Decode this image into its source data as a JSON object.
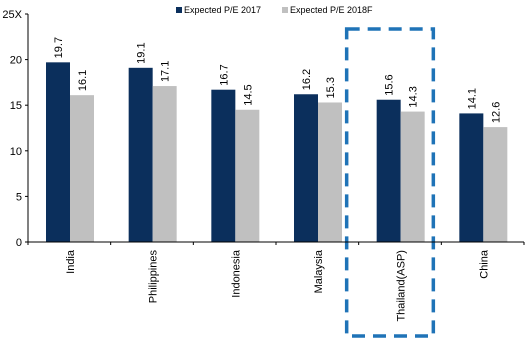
{
  "chart_data": {
    "type": "bar",
    "categories": [
      "India",
      "Philippines",
      "Indonesia",
      "Malaysia",
      "Thailand(ASP)",
      "China"
    ],
    "series": [
      {
        "name": "Expected P/E 2017",
        "color": "#0b2f5c",
        "values": [
          19.7,
          19.1,
          16.7,
          16.2,
          15.6,
          14.1
        ]
      },
      {
        "name": "Expected P/E 2018F",
        "color": "#c0c0c0",
        "values": [
          16.1,
          17.1,
          14.5,
          15.3,
          14.3,
          12.6
        ]
      }
    ],
    "y_ticks": [
      "0",
      "5",
      "10",
      "15",
      "20",
      "25"
    ],
    "y_unit": "X",
    "ylim": [
      0,
      25
    ],
    "grid": false,
    "legend_position": "top",
    "highlight": {
      "category": "Thailand(ASP)",
      "style": "dashed box",
      "color": "#1f73b7"
    }
  }
}
